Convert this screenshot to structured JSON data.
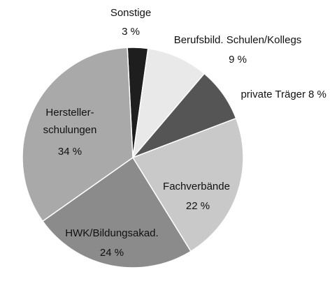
{
  "chart_data": {
    "type": "pie",
    "categories": [
      "Sonstige",
      "Berufsbild. Schulen/Kollegs",
      "private Träger",
      "Fachverbände",
      "HWK/Bildungsakad.",
      "Hersteller-\nschulungen"
    ],
    "values": [
      3,
      9,
      8,
      22,
      24,
      34
    ],
    "value_labels": [
      "3 %",
      "9 %",
      "8 %",
      "22 %",
      "24 %",
      "34 %"
    ],
    "colors": [
      "#1e1e1e",
      "#e9e9e9",
      "#555555",
      "#c9c9c9",
      "#8b8b8b",
      "#a9a9a9"
    ]
  }
}
